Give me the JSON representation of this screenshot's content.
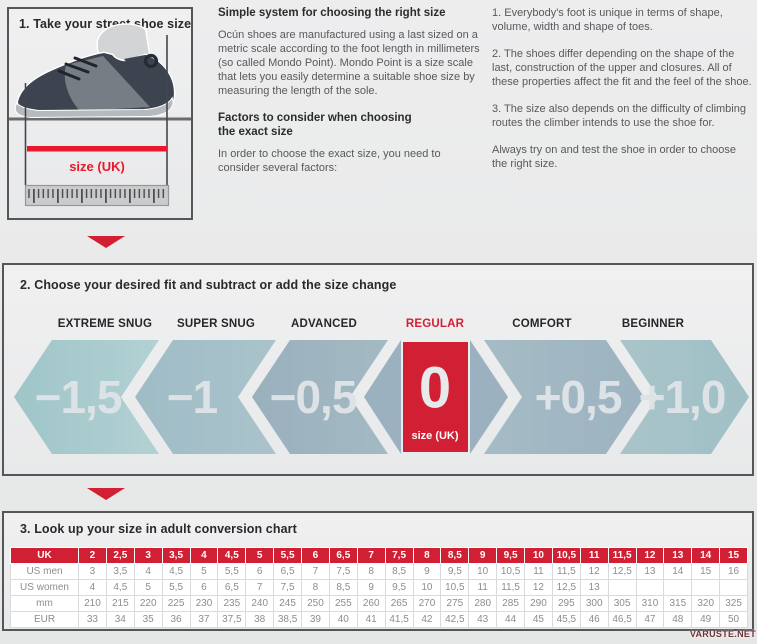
{
  "step1": {
    "title": "1. Take your street shoe size",
    "measure_label": "size (UK)"
  },
  "intro": {
    "heading1": "Simple system for choosing the right size",
    "para1": "Ocún shoes are manufactured using a last sized on a metric scale according to the foot length in millimeters (so called Mondo Point). Mondo Point is a size scale that lets you easily determine a suitable shoe size by measuring the length of the sole.",
    "heading2": "Factors to consider when choosing\nthe exact size",
    "para2": "In order to choose the exact size, you need to consider several factors:"
  },
  "factors": {
    "item1": "1. Everybody's foot is unique in terms of shape, volume, width and shape of toes.",
    "item2": "2. The shoes differ depending on the shape of the last, construction of the upper and closures. All of these properties affect the fit and the feel of the shoe.",
    "item3": "3. The size also depends on the difficulty of climbing routes the climber intends to use the shoe for.",
    "item4": "Always try on and test the shoe in order to choose the right size."
  },
  "step2": {
    "title": "2. Choose your desired fit and subtract or add the size change",
    "fits": [
      {
        "label": "EXTREME SNUG",
        "value": "−1,5"
      },
      {
        "label": "SUPER SNUG",
        "value": "−1"
      },
      {
        "label": "ADVANCED",
        "value": "−0,5"
      },
      {
        "label": "REGULAR",
        "value": "0",
        "sub": "size (UK)"
      },
      {
        "label": "COMFORT",
        "value": "+0,5"
      },
      {
        "label": "BEGINNER",
        "value": "+1,0"
      }
    ]
  },
  "step3": {
    "title": "3. Look up your size in adult conversion chart"
  },
  "chart_data": {
    "type": "table",
    "title": "Adult conversion chart",
    "header": {
      "label": "UK",
      "values": [
        "2",
        "2,5",
        "3",
        "3,5",
        "4",
        "4,5",
        "5",
        "5,5",
        "6",
        "6,5",
        "7",
        "7,5",
        "8",
        "8,5",
        "9",
        "9,5",
        "10",
        "10,5",
        "11",
        "11,5",
        "12",
        "13",
        "14",
        "15"
      ]
    },
    "rows": [
      {
        "label": "US men",
        "values": [
          "3",
          "3,5",
          "4",
          "4,5",
          "5",
          "5,5",
          "6",
          "6,5",
          "7",
          "7,5",
          "8",
          "8,5",
          "9",
          "9,5",
          "10",
          "10,5",
          "11",
          "11,5",
          "12",
          "12,5",
          "13",
          "14",
          "15",
          "16"
        ]
      },
      {
        "label": "US women",
        "values": [
          "4",
          "4,5",
          "5",
          "5,5",
          "6",
          "6,5",
          "7",
          "7,5",
          "8",
          "8,5",
          "9",
          "9,5",
          "10",
          "10,5",
          "11",
          "11,5",
          "12",
          "12,5",
          "13",
          "",
          "",
          "",
          "",
          ""
        ]
      },
      {
        "label": "mm",
        "values": [
          "210",
          "215",
          "220",
          "225",
          "230",
          "235",
          "240",
          "245",
          "250",
          "255",
          "260",
          "265",
          "270",
          "275",
          "280",
          "285",
          "290",
          "295",
          "300",
          "305",
          "310",
          "315",
          "320",
          "325"
        ]
      },
      {
        "label": "EUR",
        "values": [
          "33",
          "34",
          "35",
          "36",
          "37",
          "37,5",
          "38",
          "38,5",
          "39",
          "40",
          "41",
          "41,5",
          "42",
          "42,5",
          "43",
          "44",
          "45",
          "45,5",
          "46",
          "46,5",
          "47",
          "48",
          "49",
          "50"
        ]
      }
    ]
  },
  "watermark": "VARUSTE.NET",
  "colors": {
    "accent_red": "#d11f33",
    "chevron_teal": "#a5c9cd",
    "chevron_blue": "#9db4c0",
    "table_header_red": "#d11f33"
  }
}
